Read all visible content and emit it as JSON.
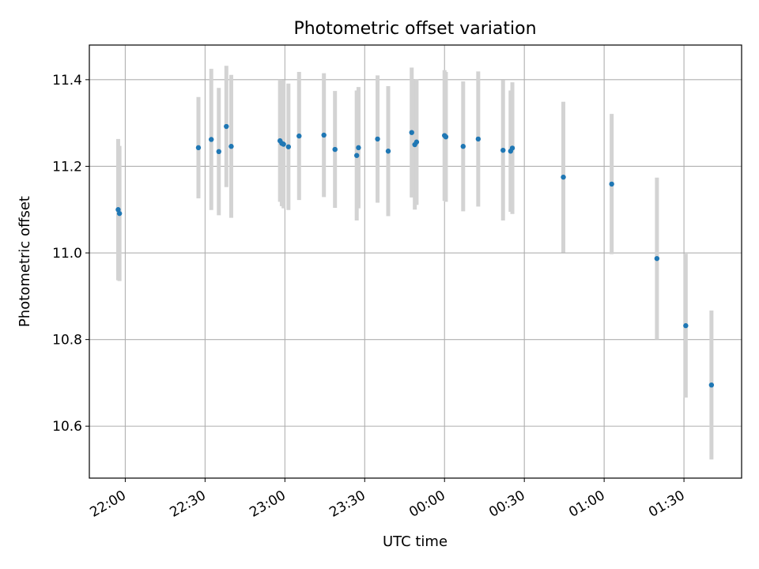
{
  "chart_data": {
    "type": "scatter",
    "title": "Photometric offset variation",
    "xlabel": "UTC time",
    "ylabel": "Photometric offset",
    "xlim": [
      "2000-01-01T21:46:30",
      "2000-01-02T01:51:40"
    ],
    "ylim": [
      10.48,
      11.48
    ],
    "grid": true,
    "x_ticks": [
      {
        "t": "2000-01-01T22:00:00",
        "label": "22:00"
      },
      {
        "t": "2000-01-01T22:30:00",
        "label": "22:30"
      },
      {
        "t": "2000-01-01T23:00:00",
        "label": "23:00"
      },
      {
        "t": "2000-01-01T23:30:00",
        "label": "23:30"
      },
      {
        "t": "2000-01-02T00:00:00",
        "label": "00:00"
      },
      {
        "t": "2000-01-02T00:30:00",
        "label": "00:30"
      },
      {
        "t": "2000-01-02T01:00:00",
        "label": "01:00"
      },
      {
        "t": "2000-01-02T01:30:00",
        "label": "01:30"
      }
    ],
    "y_ticks": [
      {
        "v": 10.6,
        "label": "10.6"
      },
      {
        "v": 10.8,
        "label": "10.8"
      },
      {
        "v": 11.0,
        "label": "11.0"
      },
      {
        "v": 11.2,
        "label": "11.2"
      },
      {
        "v": 11.4,
        "label": "11.4"
      }
    ],
    "marker_color": "#1f77b4",
    "errorbar_color": "#d3d3d3",
    "points": [
      {
        "t": "2000-01-01T21:57:20",
        "y": 11.1,
        "err": 0.163
      },
      {
        "t": "2000-01-01T21:57:50",
        "y": 11.091,
        "err": 0.156
      },
      {
        "t": "2000-01-01T22:27:30",
        "y": 11.243,
        "err": 0.117
      },
      {
        "t": "2000-01-01T22:32:20",
        "y": 11.262,
        "err": 0.163
      },
      {
        "t": "2000-01-01T22:35:10",
        "y": 11.234,
        "err": 0.147
      },
      {
        "t": "2000-01-01T22:38:00",
        "y": 11.292,
        "err": 0.14
      },
      {
        "t": "2000-01-01T22:39:50",
        "y": 11.246,
        "err": 0.165
      },
      {
        "t": "2000-01-01T22:58:10",
        "y": 11.259,
        "err": 0.141
      },
      {
        "t": "2000-01-01T22:58:50",
        "y": 11.253,
        "err": 0.145
      },
      {
        "t": "2000-01-01T22:59:30",
        "y": 11.251,
        "err": 0.148
      },
      {
        "t": "2000-01-01T23:01:20",
        "y": 11.245,
        "err": 0.146
      },
      {
        "t": "2000-01-01T23:05:20",
        "y": 11.27,
        "err": 0.148
      },
      {
        "t": "2000-01-01T23:14:40",
        "y": 11.272,
        "err": 0.143
      },
      {
        "t": "2000-01-01T23:18:50",
        "y": 11.239,
        "err": 0.135
      },
      {
        "t": "2000-01-01T23:27:00",
        "y": 11.225,
        "err": 0.15
      },
      {
        "t": "2000-01-01T23:27:40",
        "y": 11.243,
        "err": 0.14
      },
      {
        "t": "2000-01-01T23:34:50",
        "y": 11.263,
        "err": 0.147
      },
      {
        "t": "2000-01-01T23:38:50",
        "y": 11.235,
        "err": 0.15
      },
      {
        "t": "2000-01-01T23:47:40",
        "y": 11.278,
        "err": 0.15
      },
      {
        "t": "2000-01-01T23:48:50",
        "y": 11.25,
        "err": 0.15
      },
      {
        "t": "2000-01-01T23:49:30",
        "y": 11.256,
        "err": 0.145
      },
      {
        "t": "2000-01-02T00:00:00",
        "y": 11.271,
        "err": 0.151
      },
      {
        "t": "2000-01-02T00:00:30",
        "y": 11.268,
        "err": 0.15
      },
      {
        "t": "2000-01-02T00:07:00",
        "y": 11.246,
        "err": 0.15
      },
      {
        "t": "2000-01-02T00:12:40",
        "y": 11.263,
        "err": 0.156
      },
      {
        "t": "2000-01-02T00:22:00",
        "y": 11.237,
        "err": 0.162
      },
      {
        "t": "2000-01-02T00:24:50",
        "y": 11.235,
        "err": 0.14
      },
      {
        "t": "2000-01-02T00:25:30",
        "y": 11.242,
        "err": 0.152
      },
      {
        "t": "2000-01-02T00:44:40",
        "y": 11.175,
        "err": 0.174
      },
      {
        "t": "2000-01-02T01:02:50",
        "y": 11.159,
        "err": 0.162
      },
      {
        "t": "2000-01-02T01:19:50",
        "y": 10.987,
        "err": 0.187
      },
      {
        "t": "2000-01-02T01:30:40",
        "y": 10.832,
        "err": 0.166
      },
      {
        "t": "2000-01-02T01:40:20",
        "y": 10.695,
        "err": 0.172
      }
    ]
  }
}
